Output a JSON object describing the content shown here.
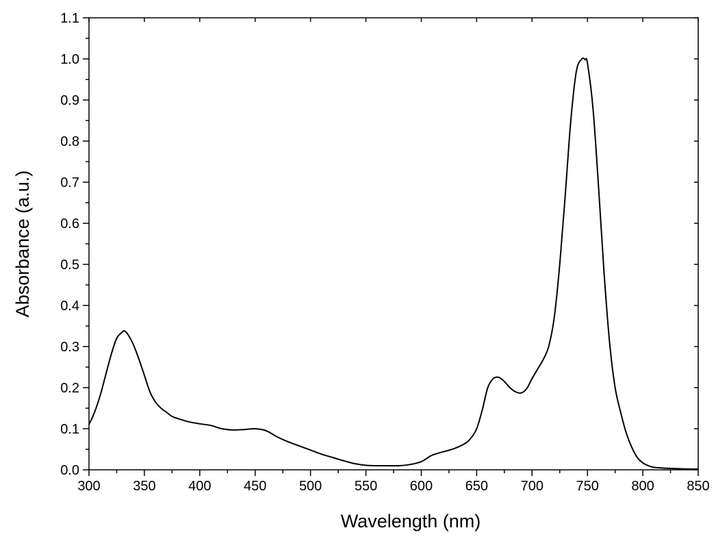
{
  "chart_data": {
    "type": "line",
    "title": "",
    "xlabel": "Wavelength (nm)",
    "ylabel": "Absorbance (a.u.)",
    "xlim": [
      300,
      850
    ],
    "ylim": [
      0.0,
      1.1
    ],
    "x_ticks": [
      300,
      350,
      400,
      450,
      500,
      550,
      600,
      650,
      700,
      750,
      800,
      850
    ],
    "y_ticks": [
      0.0,
      0.1,
      0.2,
      0.3,
      0.4,
      0.5,
      0.6,
      0.7,
      0.8,
      0.9,
      1.0,
      1.1
    ],
    "y_tick_labels": [
      "0.0",
      "0.1",
      "0.2",
      "0.3",
      "0.4",
      "0.5",
      "0.6",
      "0.7",
      "0.8",
      "0.9",
      "1.0",
      "1.1"
    ],
    "grid": false,
    "line_color": "#000000",
    "series": [
      {
        "x": [
          300,
          305,
          310,
          315,
          320,
          325,
          330,
          332,
          335,
          340,
          345,
          350,
          355,
          360,
          365,
          370,
          375,
          380,
          390,
          400,
          410,
          420,
          430,
          440,
          450,
          460,
          470,
          480,
          490,
          500,
          510,
          520,
          530,
          540,
          550,
          560,
          570,
          580,
          590,
          600,
          605,
          610,
          620,
          630,
          640,
          645,
          650,
          655,
          660,
          665,
          670,
          675,
          680,
          685,
          690,
          695,
          700,
          705,
          710,
          715,
          720,
          725,
          730,
          735,
          740,
          745,
          748,
          750,
          755,
          760,
          765,
          770,
          775,
          780,
          785,
          790,
          795,
          800,
          805,
          810,
          815,
          820,
          830,
          840,
          850
        ],
        "y": [
          0.11,
          0.14,
          0.18,
          0.23,
          0.28,
          0.32,
          0.335,
          0.338,
          0.33,
          0.305,
          0.27,
          0.23,
          0.19,
          0.165,
          0.15,
          0.14,
          0.13,
          0.125,
          0.117,
          0.112,
          0.108,
          0.1,
          0.097,
          0.098,
          0.1,
          0.095,
          0.08,
          0.068,
          0.058,
          0.048,
          0.038,
          0.03,
          0.022,
          0.015,
          0.011,
          0.01,
          0.01,
          0.01,
          0.013,
          0.02,
          0.028,
          0.036,
          0.044,
          0.052,
          0.065,
          0.078,
          0.1,
          0.145,
          0.2,
          0.222,
          0.225,
          0.215,
          0.2,
          0.19,
          0.187,
          0.197,
          0.222,
          0.245,
          0.268,
          0.3,
          0.37,
          0.5,
          0.67,
          0.85,
          0.97,
          1.0,
          0.998,
          0.99,
          0.88,
          0.69,
          0.48,
          0.31,
          0.2,
          0.14,
          0.09,
          0.055,
          0.03,
          0.017,
          0.01,
          0.006,
          0.005,
          0.004,
          0.003,
          0.002,
          0.002
        ]
      }
    ]
  }
}
